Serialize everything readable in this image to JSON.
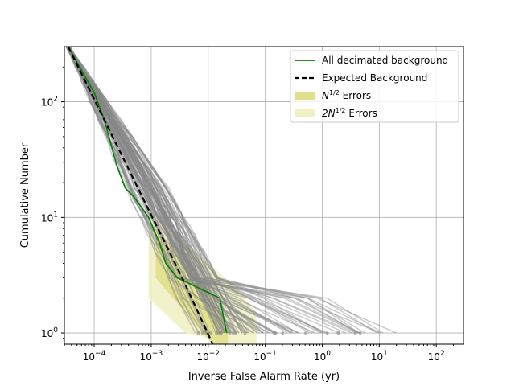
{
  "chart_data": {
    "type": "line",
    "xscale": "log",
    "yscale": "log",
    "xlim": [
      3e-05,
      300
    ],
    "ylim": [
      0.8,
      300
    ],
    "xlabel": "Inverse False Alarm Rate (yr)",
    "ylabel": "Cumulative Number",
    "grid": true,
    "x_ticks": [
      {
        "value": 0.0001,
        "mant": "10",
        "exp": "−4"
      },
      {
        "value": 0.001,
        "mant": "10",
        "exp": "−3"
      },
      {
        "value": 0.01,
        "mant": "10",
        "exp": "−2"
      },
      {
        "value": 0.1,
        "mant": "10",
        "exp": "−1"
      },
      {
        "value": 1,
        "mant": "10",
        "exp": "0"
      },
      {
        "value": 10,
        "mant": "10",
        "exp": "1"
      },
      {
        "value": 100,
        "mant": "10",
        "exp": "2"
      }
    ],
    "y_ticks": [
      {
        "value": 1,
        "mant": "10",
        "exp": "0"
      },
      {
        "value": 10,
        "mant": "10",
        "exp": "1"
      },
      {
        "value": 100,
        "mant": "10",
        "exp": "2"
      }
    ],
    "legend": {
      "placement": "top-right",
      "entries": [
        {
          "label": "All decimated background",
          "kind": "line",
          "color": "#008000"
        },
        {
          "label": "Expected Background",
          "kind": "dashed",
          "color": "#000000"
        },
        {
          "label_prefix": "N",
          "label_sup": "1/2",
          "label_suffix": " Errors",
          "kind": "patch",
          "color": "#e0e08a"
        },
        {
          "label_prefix": "2N",
          "label_sup": "1/2",
          "label_suffix": " Errors",
          "kind": "patch",
          "color": "#f0f0c4"
        }
      ]
    },
    "series": [
      {
        "name": "All decimated background",
        "color": "#008000",
        "x": [
          3.5e-05,
          0.0001,
          0.00015,
          0.00025,
          0.00035,
          0.0005,
          0.0009,
          0.0014,
          0.0018,
          0.0029,
          0.016,
          0.021
        ],
        "y": [
          300,
          120,
          70,
          28,
          18,
          15,
          10,
          6,
          4,
          3,
          2,
          1
        ]
      },
      {
        "name": "Expected Background",
        "color": "#000000",
        "style": "dashed",
        "x": [
          3.5e-05,
          0.0035,
          0.012
        ],
        "y": [
          300,
          3,
          0.8
        ]
      }
    ],
    "background_realizations": {
      "color": "#888888",
      "count": 100,
      "x_at_y300": 3.5e-05,
      "spread_decades": 0.55,
      "tail_x_range": [
        0.003,
        25
      ]
    },
    "error_bands": [
      {
        "label": "N^1/2 Errors",
        "color": "#e0e08a",
        "x": [
          0.0012,
          0.004,
          0.012,
          0.022
        ],
        "y_low": [
          3,
          1.5,
          0.8,
          0.8
        ],
        "y_high": [
          8,
          4,
          2,
          1.2
        ]
      },
      {
        "label": "2N^1/2 Errors",
        "color": "#f0f0c4",
        "x": [
          0.0009,
          0.004,
          0.03,
          0.07
        ],
        "y_low": [
          2,
          1,
          0.8,
          0.8
        ],
        "y_high": [
          12,
          6,
          2.5,
          1.5
        ]
      }
    ]
  }
}
